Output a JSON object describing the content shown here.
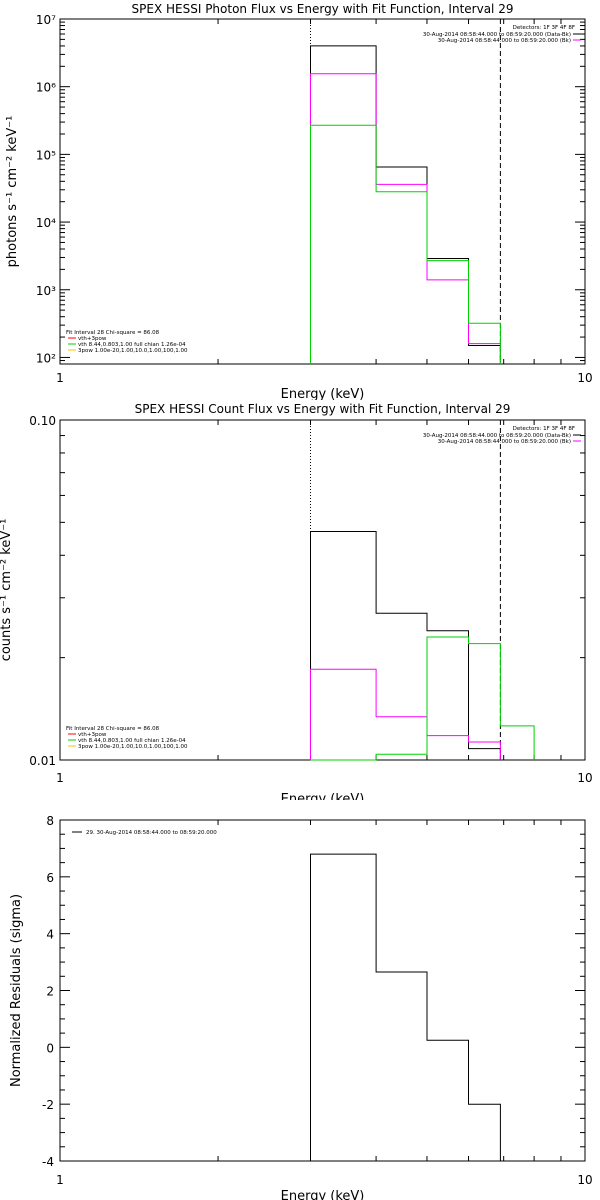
{
  "colors": {
    "black": "#000000",
    "magenta": "#ff00ff",
    "green": "#00d200",
    "red": "#ff0000",
    "yellow": "#ffc000"
  },
  "chart_data": [
    {
      "type": "line",
      "title": "SPEX HESSI Photon Flux vs Energy with Fit Function, Interval 29",
      "xlabel": "Energy (keV)",
      "ylabel": "photons s⁻¹ cm⁻² keV⁻¹",
      "xscale": "log",
      "yscale": "log",
      "xlim": [
        1,
        10
      ],
      "ylim": [
        80,
        10000000
      ],
      "xticklabels": [
        "1",
        "10"
      ],
      "yticklabels": [
        "10²",
        "10³",
        "10⁴",
        "10⁵",
        "10⁶",
        "10⁷"
      ],
      "vlines": [
        {
          "x": 3.0,
          "style": "dotted"
        },
        {
          "x": 6.9,
          "style": "dashed"
        }
      ],
      "legend_top_right": {
        "header": "Detectors: 1F 3F 4F 8F",
        "entries": [
          {
            "text": "30-Aug-2014 08:58:44.000 to 08:59:20.000 (Data-Bk)",
            "color": "#000000"
          },
          {
            "text": "30-Aug-2014 08:58:44.000 to 08:59:20.000 (Bk)",
            "color": "#ff00ff"
          }
        ]
      },
      "legend_bottom_left": {
        "header": "Fit Interval 28   Chi-square = 86.08",
        "entries": [
          {
            "text": "vth+3pow",
            "color": "#ff0000"
          },
          {
            "text": "vth 8.44,0.803,1.00  full chian 1.26e-04",
            "color": "#00d200"
          },
          {
            "text": "3pow 1.00e-20,1.00,10.0,1.00,100,1.00",
            "color": "#ffc000"
          }
        ]
      },
      "series": [
        {
          "color": "#000000",
          "edges": [
            3.0,
            4.0,
            5.0,
            6.0,
            6.9
          ],
          "values": [
            4000000,
            65000,
            2900,
            150
          ]
        },
        {
          "color": "#ff00ff",
          "edges": [
            3.0,
            4.0,
            5.0,
            6.0,
            6.9
          ],
          "values": [
            1550000,
            36000,
            1400,
            160
          ]
        },
        {
          "color": "#00d200",
          "edges": [
            3.0,
            4.0,
            5.0,
            6.0,
            6.9
          ],
          "values": [
            270000,
            28000,
            2700,
            320
          ]
        }
      ]
    },
    {
      "type": "line",
      "title": "SPEX HESSI Count Flux vs Energy with Fit Function, Interval 29",
      "xlabel": "Energy (keV)",
      "ylabel": "counts s⁻¹ cm⁻² keV⁻¹",
      "xscale": "log",
      "yscale": "log",
      "xlim": [
        1,
        10
      ],
      "ylim": [
        0.01,
        0.1
      ],
      "xticklabels": [
        "1",
        "10"
      ],
      "yticklabels": [
        "0.01",
        "0.10"
      ],
      "vlines": [
        {
          "x": 3.0,
          "style": "dotted"
        },
        {
          "x": 6.9,
          "style": "dashed"
        }
      ],
      "legend_top_right": {
        "header": "Detectors: 1F 3F 4F 8F",
        "entries": [
          {
            "text": "30-Aug-2014 08:58:44.000 to 08:59:20.000 (Data-Bk)",
            "color": "#000000"
          },
          {
            "text": "30-Aug-2014 08:58:44.000 to 08:59:20.000 (Bk)",
            "color": "#ff00ff"
          }
        ]
      },
      "legend_bottom_left": {
        "header": "Fit Interval 28   Chi-square = 86.08",
        "entries": [
          {
            "text": "vth+3pow",
            "color": "#ff0000"
          },
          {
            "text": "vth 8.44,0.803,1.00  full chian 1.26e-04",
            "color": "#00d200"
          },
          {
            "text": "3pow 1.00e-20,1.00,10.0,1.00,100,1.00",
            "color": "#ffc000"
          }
        ]
      },
      "series": [
        {
          "color": "#000000",
          "edges": [
            3.0,
            4.0,
            5.0,
            6.0,
            6.9
          ],
          "values": [
            0.047,
            0.027,
            0.024,
            0.0108
          ]
        },
        {
          "color": "#ff00ff",
          "edges": [
            3.0,
            4.0,
            5.0,
            6.0,
            6.9
          ],
          "values": [
            0.0185,
            0.0134,
            0.0118,
            0.0113
          ]
        },
        {
          "color": "#00d200",
          "edges": [
            3.0,
            4.0,
            5.0,
            6.0,
            6.9,
            8.0
          ],
          "values": [
            0.01,
            0.0104,
            0.023,
            0.022,
            0.0126
          ]
        }
      ]
    },
    {
      "type": "line",
      "title": "",
      "xlabel": "Energy (keV)",
      "ylabel": "Normalized Residuals (sigma)",
      "xscale": "log",
      "yscale": "linear",
      "xlim": [
        1,
        10
      ],
      "ylim": [
        -4,
        8
      ],
      "xticklabels": [
        "1",
        "10"
      ],
      "yticks": [
        -4,
        -2,
        0,
        2,
        4,
        6,
        8
      ],
      "yticklabels": [
        "-4",
        "-2",
        "0",
        "2",
        "4",
        "6",
        "8"
      ],
      "legend": {
        "entries": [
          {
            "text": "29. 30-Aug-2014 08:58:44.000 to 08:59:20.000",
            "color": "#000000"
          }
        ]
      },
      "series": [
        {
          "color": "#000000",
          "edges": [
            3.0,
            4.0,
            5.0,
            6.0,
            6.9
          ],
          "values": [
            6.8,
            2.65,
            0.25,
            -2.0
          ]
        }
      ]
    }
  ]
}
